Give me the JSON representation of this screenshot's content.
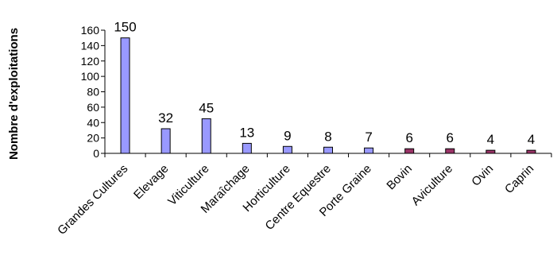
{
  "chart_data": {
    "type": "bar",
    "ylabel": "Nombre d'exploitations",
    "xlabel": "",
    "ylim": [
      0,
      160
    ],
    "yticks": [
      0,
      20,
      40,
      60,
      80,
      100,
      120,
      140,
      160
    ],
    "categories": [
      "Grandes Cultures",
      "Elevage",
      "Viticulture",
      "Maraîchage",
      "Horticulture",
      "Centre Equestre",
      "Porte Graine",
      "Bovin",
      "Aviculture",
      "Ovin",
      "Caprin"
    ],
    "values": [
      150,
      32,
      45,
      13,
      9,
      8,
      7,
      6,
      6,
      4,
      4
    ],
    "bar_colors": [
      "#9999ff",
      "#9999ff",
      "#9999ff",
      "#9999ff",
      "#9999ff",
      "#9999ff",
      "#9999ff",
      "#993366",
      "#993366",
      "#993366",
      "#993366"
    ],
    "grid": false,
    "legend": "none"
  }
}
